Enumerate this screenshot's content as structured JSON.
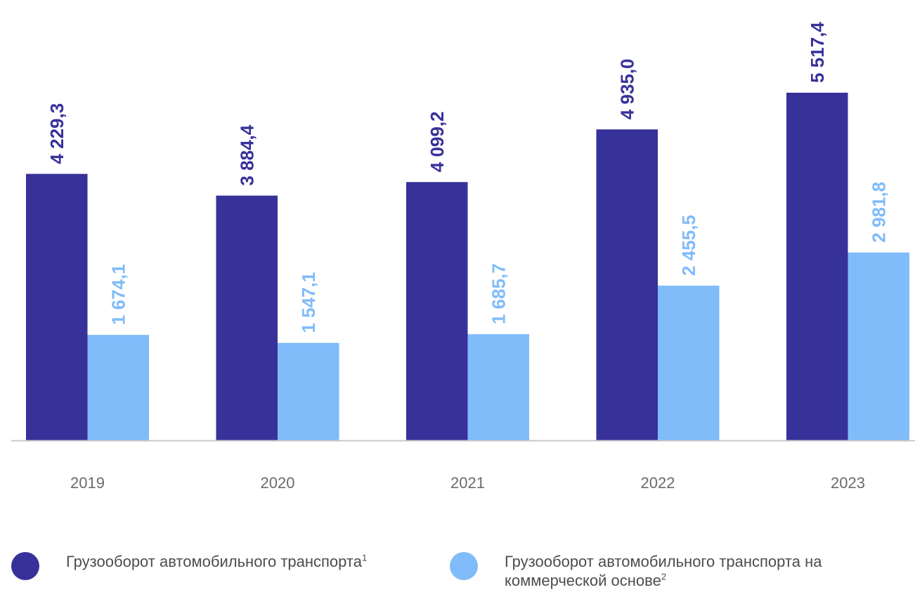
{
  "chart_data": {
    "type": "bar",
    "categories": [
      "2019",
      "2020",
      "2021",
      "2022",
      "2023"
    ],
    "series": [
      {
        "name": "Грузооборот автомобильного транспорта",
        "footnote": "1",
        "color": "#37319A",
        "values": [
          4229.3,
          3884.4,
          4099.2,
          4935.0,
          5517.4
        ],
        "labels": [
          "4 229,3",
          "3 884,4",
          "4 099,2",
          "4 935,0",
          "5 517,4"
        ]
      },
      {
        "name": "Грузооборот автомобильного транспорта на коммерческой основе",
        "footnote": "2",
        "color": "#80BBFA",
        "values": [
          1674.1,
          1547.1,
          1685.7,
          2455.5,
          2981.8
        ],
        "labels": [
          "1 674,1",
          "1 547,1",
          "1 685,7",
          "2 455,5",
          "2 981,8"
        ]
      }
    ],
    "title": "",
    "xlabel": "",
    "ylabel": "",
    "ylim": [
      0,
      5517.4
    ],
    "grid": false,
    "legend_position": "bottom"
  }
}
